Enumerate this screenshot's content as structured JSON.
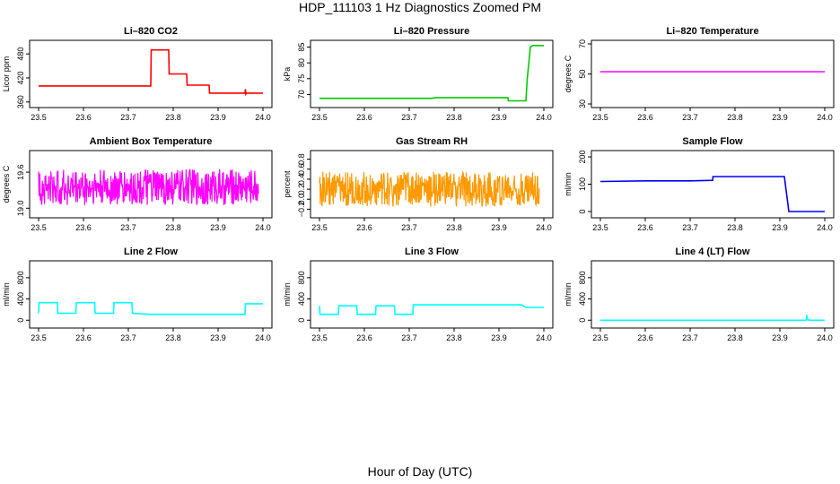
{
  "title": "HDP_111103  1 Hz Diagnostics Zoomed PM",
  "xlabel": "Hour of Day (UTC)",
  "chart_data": [
    {
      "type": "line",
      "title": "Li–820 CO2",
      "ylabel": "Licor ppm",
      "color": "#ff0000",
      "xlim": [
        23.5,
        24.0
      ],
      "ylim": [
        355,
        505
      ],
      "yticks": [
        360,
        420,
        480
      ],
      "xticks": [
        "23.5",
        "23.6",
        "23.7",
        "23.8",
        "23.9",
        "24.0"
      ],
      "x": [
        23.5,
        23.75,
        23.751,
        23.79,
        23.791,
        23.83,
        23.831,
        23.88,
        23.881,
        23.96,
        23.961,
        23.962,
        23.963,
        24.0
      ],
      "y": [
        400,
        400,
        490,
        490,
        430,
        430,
        402,
        402,
        382,
        382,
        392,
        380,
        382,
        382
      ]
    },
    {
      "type": "line",
      "title": "Li–820 Pressure",
      "ylabel": "kPa",
      "color": "#00cc00",
      "xlim": [
        23.5,
        24.0
      ],
      "ylim": [
        67,
        86
      ],
      "yticks": [
        70,
        75,
        80,
        85
      ],
      "xticks": [
        "23.5",
        "23.6",
        "23.7",
        "23.8",
        "23.9",
        "24.0"
      ],
      "x": [
        23.5,
        23.75,
        23.76,
        23.92,
        23.921,
        23.96,
        23.963,
        23.97,
        23.975,
        24.0
      ],
      "y": [
        68.8,
        68.8,
        69,
        69,
        68,
        68,
        75,
        85,
        85.5,
        85.5
      ]
    },
    {
      "type": "line",
      "title": "Li–820 Temperature",
      "ylabel": "degrees C",
      "color": "#ff00ff",
      "xlim": [
        23.5,
        24.0
      ],
      "ylim": [
        30,
        70
      ],
      "yticks": [
        30,
        50,
        70
      ],
      "xticks": [
        "23.5",
        "23.6",
        "23.7",
        "23.8",
        "23.9",
        "24.0"
      ],
      "x": [
        23.5,
        24.0
      ],
      "y": [
        51.5,
        51.5
      ]
    },
    {
      "type": "line",
      "title": "Ambient Box Temperature",
      "ylabel": "degrees C",
      "color": "#ff00ff",
      "noisy": true,
      "xlim": [
        23.5,
        24.0
      ],
      "ylim": [
        18.9,
        19.9
      ],
      "yticks": [
        19.0,
        19.6
      ],
      "ytick_labels": [
        "19.0",
        "19.6"
      ],
      "xticks": [
        "23.5",
        "23.6",
        "23.7",
        "23.8",
        "23.9",
        "24.0"
      ],
      "x": [
        23.5,
        23.99
      ],
      "y": [
        19.35,
        19.35
      ],
      "noise_amplitude": 0.3
    },
    {
      "type": "line",
      "title": "Gas Stream RH",
      "ylabel": "percent",
      "color": "#ff9900",
      "noisy": true,
      "xlim": [
        23.5,
        24.0
      ],
      "ylim": [
        -0.3,
        0.9
      ],
      "yticks": [
        -0.2,
        0.0,
        0.2,
        0.4,
        0.6,
        0.8
      ],
      "ytick_labels": [
        "−0.2",
        "0.0",
        "0.2",
        "0.4",
        "0.6",
        "0.8"
      ],
      "xticks": [
        "23.5",
        "23.6",
        "23.7",
        "23.8",
        "23.9",
        "24.0"
      ],
      "x": [
        23.5,
        23.99
      ],
      "y": [
        0.2,
        0.2
      ],
      "noise_amplitude": 0.35
    },
    {
      "type": "line",
      "title": "Sample Flow",
      "ylabel": "ml/min",
      "color": "#0000ff",
      "xlim": [
        23.5,
        24.0
      ],
      "ylim": [
        -10,
        210
      ],
      "yticks": [
        0,
        100,
        200
      ],
      "xticks": [
        "23.5",
        "23.6",
        "23.7",
        "23.8",
        "23.9",
        "24.0"
      ],
      "x": [
        23.5,
        23.6,
        23.7,
        23.75,
        23.751,
        23.91,
        23.92,
        24.0
      ],
      "y": [
        110,
        112,
        112,
        114,
        128,
        128,
        0,
        0
      ]
    },
    {
      "type": "line",
      "title": "Line 2 Flow",
      "ylabel": "ml/min",
      "color": "#00ffff",
      "xlim": [
        23.5,
        24.0
      ],
      "ylim": [
        -80,
        1050
      ],
      "yticks": [
        0,
        400,
        800
      ],
      "xticks": [
        "23.5",
        "23.6",
        "23.7",
        "23.8",
        "23.9",
        "24.0"
      ],
      "x": [
        23.5,
        23.501,
        23.542,
        23.543,
        23.583,
        23.584,
        23.625,
        23.626,
        23.667,
        23.668,
        23.708,
        23.709,
        23.75,
        23.96,
        23.961,
        24.0
      ],
      "y": [
        130,
        330,
        330,
        130,
        130,
        330,
        330,
        130,
        130,
        330,
        330,
        130,
        110,
        110,
        310,
        310
      ]
    },
    {
      "type": "line",
      "title": "Line 3 Flow",
      "ylabel": "ml/min",
      "color": "#00ffff",
      "xlim": [
        23.5,
        24.0
      ],
      "ylim": [
        -80,
        1050
      ],
      "yticks": [
        0,
        400,
        800
      ],
      "xticks": [
        "23.5",
        "23.6",
        "23.7",
        "23.8",
        "23.9",
        "24.0"
      ],
      "x": [
        23.5,
        23.501,
        23.542,
        23.543,
        23.583,
        23.584,
        23.625,
        23.626,
        23.667,
        23.668,
        23.708,
        23.709,
        23.95,
        23.96,
        24.0
      ],
      "y": [
        270,
        110,
        110,
        270,
        270,
        110,
        110,
        270,
        270,
        110,
        110,
        290,
        290,
        240,
        240
      ]
    },
    {
      "type": "line",
      "title": "Line 4 (LT) Flow",
      "ylabel": "ml/min",
      "color": "#00ffff",
      "xlim": [
        23.5,
        24.0
      ],
      "ylim": [
        -80,
        1050
      ],
      "yticks": [
        0,
        400,
        800
      ],
      "xticks": [
        "23.5",
        "23.6",
        "23.7",
        "23.8",
        "23.9",
        "24.0"
      ],
      "x": [
        23.5,
        23.959,
        23.96,
        23.961,
        23.965,
        24.0
      ],
      "y": [
        0,
        0,
        100,
        30,
        0,
        0
      ]
    }
  ]
}
